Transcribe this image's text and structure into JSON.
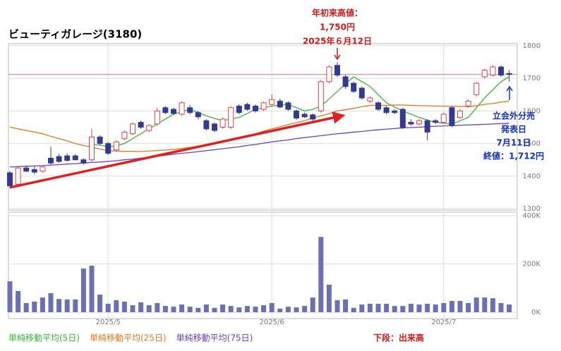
{
  "chart_data": [
    {
      "type": "candlestick",
      "title": "ビューティガレージ(3180)",
      "ylim": [
        1300,
        1800
      ],
      "yticks": [
        1300,
        1400,
        1500,
        1600,
        1700,
        1800
      ],
      "grid": true,
      "up_color": "#e0404a",
      "down_color": "#353a8c",
      "open": [
        1410,
        1375,
        1425,
        1420,
        1415,
        1455,
        1460,
        1462,
        1462,
        1450,
        1450,
        1520,
        1500,
        1480,
        1515,
        1530,
        1565,
        1540,
        1560,
        1610,
        1605,
        1590,
        1610,
        1595,
        1570,
        1560,
        1550,
        1550,
        1615,
        1620,
        1615,
        1605,
        1620,
        1630,
        1625,
        1600,
        1590,
        1588,
        1600,
        1690,
        1740,
        1705,
        1685,
        1670,
        1630,
        1625,
        1610,
        1600,
        1605,
        1565,
        1560,
        1570,
        1570,
        1565,
        1610,
        1580,
        1615,
        1650,
        1705,
        1710,
        1735,
        1715
      ],
      "high": [
        1415,
        1430,
        1432,
        1430,
        1432,
        1490,
        1468,
        1470,
        1468,
        1455,
        1545,
        1525,
        1505,
        1510,
        1540,
        1565,
        1570,
        1560,
        1610,
        1615,
        1610,
        1630,
        1618,
        1600,
        1575,
        1565,
        1580,
        1615,
        1620,
        1625,
        1620,
        1630,
        1650,
        1638,
        1630,
        1605,
        1595,
        1592,
        1695,
        1740,
        1750,
        1712,
        1690,
        1675,
        1645,
        1630,
        1615,
        1605,
        1610,
        1575,
        1575,
        1575,
        1575,
        1595,
        1615,
        1605,
        1635,
        1690,
        1730,
        1740,
        1740,
        1725
      ],
      "low": [
        1365,
        1370,
        1412,
        1405,
        1410,
        1435,
        1440,
        1445,
        1448,
        1435,
        1445,
        1495,
        1465,
        1475,
        1510,
        1525,
        1545,
        1535,
        1555,
        1590,
        1588,
        1585,
        1590,
        1575,
        1540,
        1535,
        1545,
        1545,
        1590,
        1600,
        1595,
        1600,
        1615,
        1608,
        1600,
        1572,
        1578,
        1570,
        1595,
        1685,
        1705,
        1668,
        1655,
        1635,
        1625,
        1600,
        1590,
        1590,
        1545,
        1555,
        1555,
        1510,
        1560,
        1560,
        1550,
        1575,
        1610,
        1645,
        1700,
        1705,
        1705,
        1690
      ],
      "close": [
        1370,
        1425,
        1415,
        1412,
        1428,
        1440,
        1445,
        1448,
        1450,
        1440,
        1520,
        1500,
        1470,
        1505,
        1535,
        1560,
        1550,
        1555,
        1600,
        1595,
        1592,
        1625,
        1595,
        1582,
        1545,
        1540,
        1575,
        1610,
        1595,
        1605,
        1600,
        1625,
        1635,
        1612,
        1605,
        1578,
        1582,
        1575,
        1690,
        1735,
        1710,
        1675,
        1660,
        1640,
        1640,
        1605,
        1595,
        1595,
        1550,
        1560,
        1570,
        1535,
        1565,
        1590,
        1555,
        1600,
        1630,
        1685,
        1725,
        1735,
        1710,
        1712
      ],
      "series": [
        {
          "name": "単純移動平均(5日)",
          "color": "#3cb43c",
          "values": [
            null,
            null,
            null,
            null,
            null,
            null,
            null,
            null,
            null,
            null,
            1497,
            1495,
            1490,
            1493,
            1500,
            1515,
            1530,
            1545,
            1560,
            1575,
            1590,
            1598,
            1605,
            1595,
            1585,
            1577,
            1570,
            1575,
            1580,
            1592,
            1605,
            1610,
            1615,
            1618,
            1620,
            1610,
            1600,
            1605,
            1615,
            1637,
            1660,
            1683,
            1705,
            1690,
            1675,
            1650,
            1625,
            1612,
            1600,
            1590,
            1580,
            1572,
            1565,
            1562,
            1560,
            1570,
            1580,
            1610,
            1640,
            1665,
            1690,
            1705
          ]
        },
        {
          "name": "単純移動平均(25日)",
          "color": "#e07820",
          "values": [
            1550,
            1545,
            1540,
            1535,
            1530,
            1522,
            1515,
            1508,
            1500,
            1494,
            1489,
            1483,
            1478,
            1477,
            1476,
            1476,
            1475,
            1477,
            1478,
            1480,
            1482,
            1485,
            1488,
            1492,
            1495,
            1500,
            1505,
            1510,
            1515,
            1522,
            1530,
            1538,
            1545,
            1551,
            1558,
            1564,
            1570,
            1578,
            1585,
            1592,
            1600,
            1604,
            1608,
            1613,
            1617,
            1617,
            1617,
            1618,
            1618,
            1617,
            1616,
            1616,
            1615,
            1615,
            1614,
            1614,
            1613,
            1616,
            1620,
            1623,
            1627,
            1630
          ]
        },
        {
          "name": "単純移動平均(75日)",
          "color": "#6a3fb8",
          "values": [
            1428,
            1429,
            1430,
            1431,
            1432,
            1434,
            1435,
            1437,
            1438,
            1440,
            1442,
            1443,
            1445,
            1447,
            1450,
            1452,
            1455,
            1458,
            1461,
            1464,
            1467,
            1470,
            1472,
            1475,
            1478,
            1481,
            1484,
            1487,
            1490,
            1494,
            1497,
            1501,
            1505,
            1508,
            1511,
            1515,
            1518,
            1521,
            1524,
            1527,
            1530,
            1532,
            1535,
            1537,
            1540,
            1542,
            1544,
            1546,
            1548,
            1549,
            1550,
            1552,
            1553,
            1554,
            1555,
            1556,
            1557,
            1558,
            1559,
            1560,
            1561,
            1562
          ]
        }
      ],
      "reference_line": 1712,
      "high_note": [
        "年初来高値：",
        "1,750円",
        "2025年６月12日"
      ],
      "offering_note": [
        "立会外分売",
        "発表日",
        "7月11日",
        "終値：1,712円"
      ]
    },
    {
      "type": "bar",
      "label": "下段：出来高",
      "color": "#6b70b3",
      "categories": [
        null,
        null,
        null,
        null,
        null,
        null,
        null,
        null,
        null,
        null,
        null,
        null,
        "2025/5",
        null,
        null,
        null,
        null,
        null,
        null,
        null,
        null,
        null,
        null,
        null,
        null,
        null,
        null,
        null,
        null,
        null,
        null,
        null,
        "2025/6",
        null,
        null,
        null,
        null,
        null,
        null,
        null,
        null,
        null,
        null,
        null,
        null,
        null,
        null,
        null,
        null,
        null,
        null,
        null,
        null,
        "2025/7",
        null,
        null,
        null,
        null,
        null,
        null,
        null,
        null
      ],
      "values": [
        128,
        88,
        38,
        44,
        61,
        79,
        55,
        53,
        53,
        181,
        193,
        73,
        35,
        50,
        44,
        29,
        41,
        29,
        38,
        26,
        23,
        32,
        23,
        18,
        32,
        18,
        32,
        26,
        20,
        26,
        23,
        29,
        38,
        15,
        23,
        20,
        26,
        61,
        312,
        114,
        50,
        53,
        18,
        32,
        35,
        35,
        35,
        26,
        26,
        35,
        32,
        35,
        32,
        38,
        47,
        47,
        38,
        61,
        61,
        58,
        38,
        32
      ],
      "ylim": [
        0,
        400
      ],
      "yticks": [
        {
          "value": 0,
          "label": "0K"
        },
        {
          "value": 200,
          "label": "200K"
        },
        {
          "value": 400,
          "label": "400K"
        }
      ],
      "grid": true
    }
  ]
}
